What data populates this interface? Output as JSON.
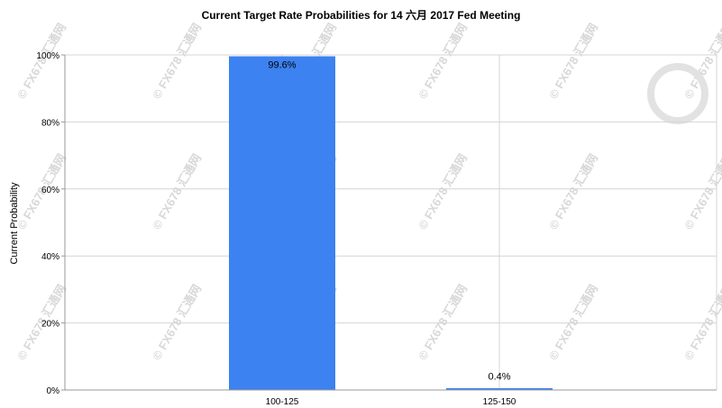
{
  "chart_data": {
    "type": "bar",
    "title": "Current Target Rate Probabilities for 14 六月 2017 Fed Meeting",
    "xlabel": "",
    "ylabel": "Current Probability",
    "categories": [
      "100-125",
      "125-150"
    ],
    "values": [
      99.6,
      0.4
    ],
    "data_labels": [
      "99.6%",
      "0.4%"
    ],
    "ylim": [
      0,
      100
    ],
    "yticks": [
      "0%",
      "20%",
      "40%",
      "60%",
      "80%",
      "100%"
    ],
    "grid": true,
    "bar_color": "#3c82f0",
    "watermark": "FX678 汇通网"
  }
}
